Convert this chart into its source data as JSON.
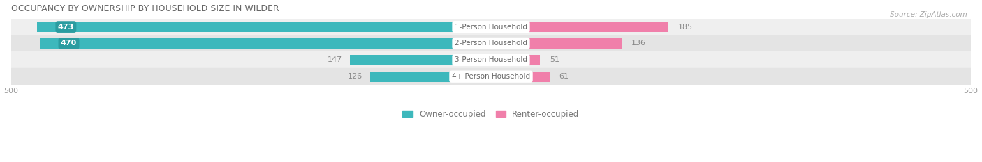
{
  "title": "OCCUPANCY BY OWNERSHIP BY HOUSEHOLD SIZE IN WILDER",
  "source": "Source: ZipAtlas.com",
  "categories": [
    "1-Person Household",
    "2-Person Household",
    "3-Person Household",
    "4+ Person Household"
  ],
  "owner_values": [
    473,
    470,
    147,
    126
  ],
  "renter_values": [
    185,
    136,
    51,
    61
  ],
  "max_val": 500,
  "owner_color": "#3db8bc",
  "renter_color": "#f07faa",
  "row_bg_colors": [
    "#efefef",
    "#e4e4e4"
  ],
  "title_color": "#666666",
  "axis_label_color": "#999999",
  "source_color": "#aaaaaa",
  "bar_height": 0.62,
  "figsize": [
    14.06,
    2.33
  ],
  "dpi": 100,
  "owner_label_threshold": 200
}
